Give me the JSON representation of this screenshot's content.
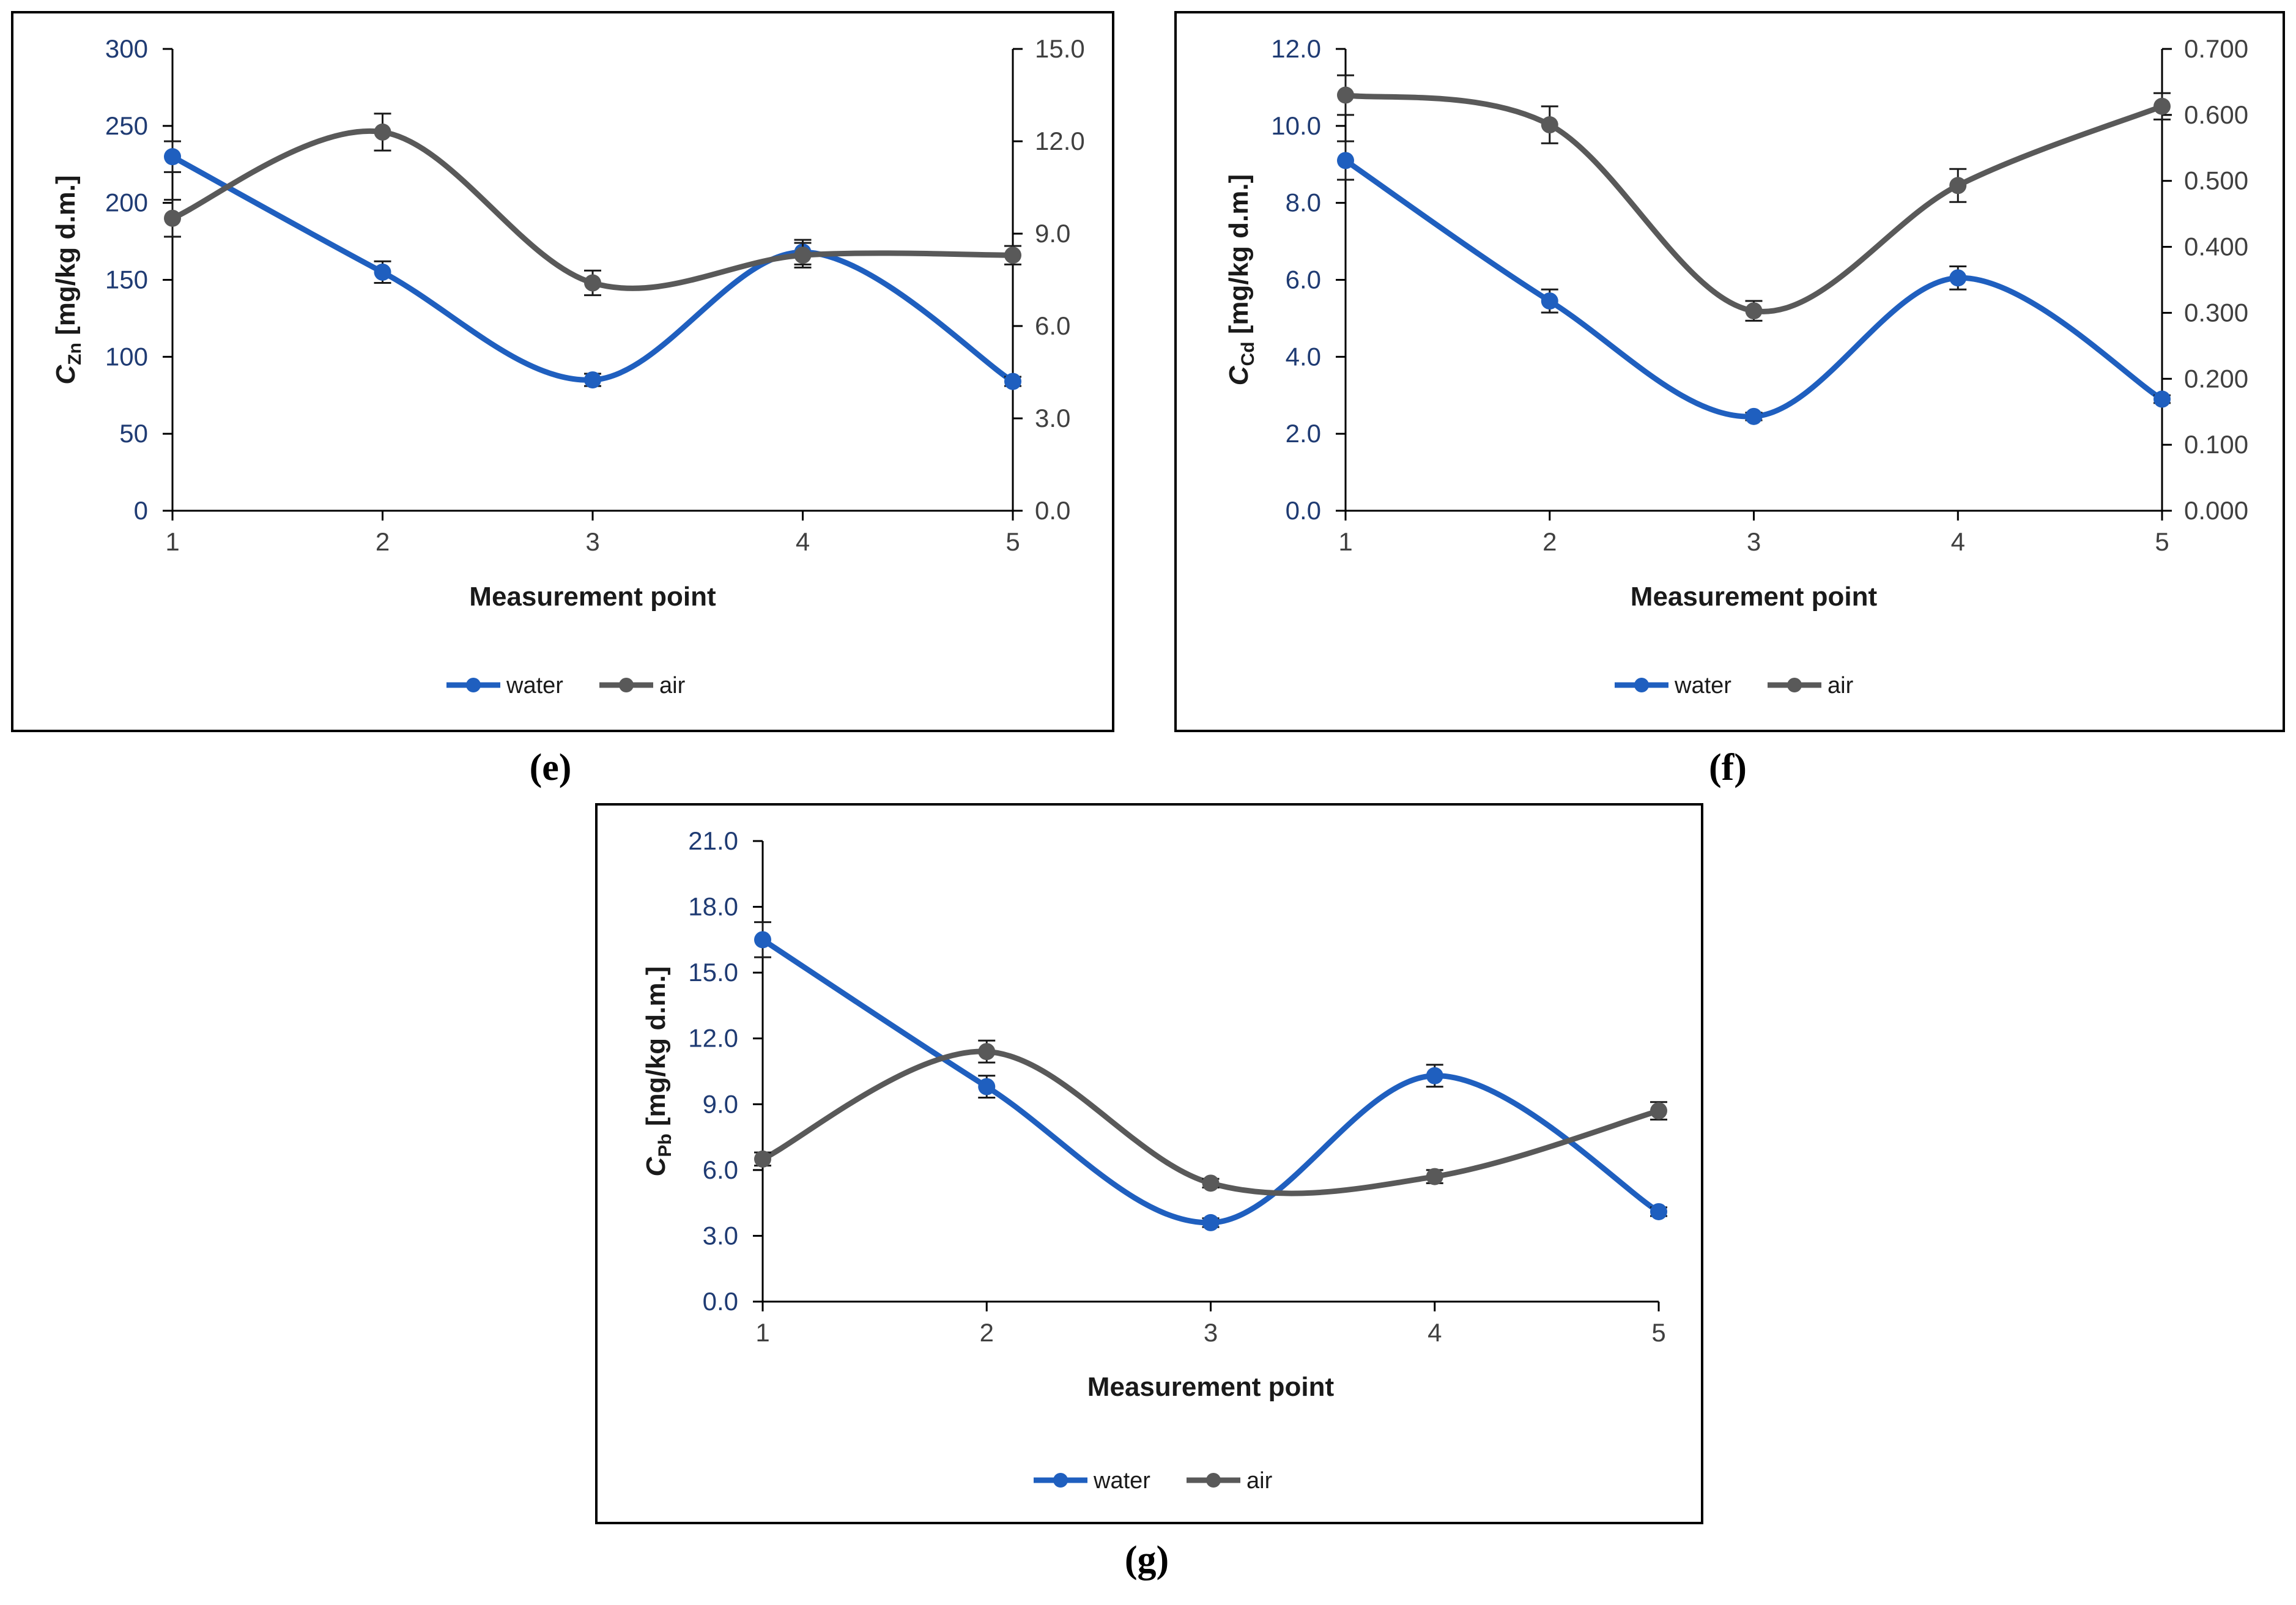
{
  "chart_data": [
    {
      "type": "line",
      "panel_label": "(e)",
      "xlabel": "Measurement point",
      "ylabel_main": "C",
      "ylabel_sub": "Zn",
      "ylabel_rest": " [mg/kg d.m.]",
      "categories": [
        "1",
        "2",
        "3",
        "4",
        "5"
      ],
      "y_left_ticks": [
        "0",
        "50",
        "100",
        "150",
        "200",
        "250",
        "300"
      ],
      "y_right_ticks": [
        "0.0",
        "3.0",
        "6.0",
        "9.0",
        "12.0",
        "15.0"
      ],
      "ylim_left": [
        0,
        300
      ],
      "ylim_right": [
        0,
        15
      ],
      "legend": [
        "water",
        "air"
      ],
      "series": [
        {
          "name": "water",
          "axis": "left",
          "color": "#1f5fbf",
          "values": [
            230,
            155,
            85,
            168,
            84
          ],
          "errors": [
            10,
            7,
            4,
            8,
            3
          ]
        },
        {
          "name": "air",
          "axis": "right",
          "color": "#595959",
          "values": [
            9.5,
            12.3,
            7.4,
            8.3,
            8.3
          ],
          "errors": [
            0.6,
            0.6,
            0.4,
            0.4,
            0.3
          ]
        }
      ]
    },
    {
      "type": "line",
      "panel_label": "(f)",
      "xlabel": "Measurement point",
      "ylabel_main": "C",
      "ylabel_sub": "Cd",
      "ylabel_rest": " [mg/kg d.m.]",
      "categories": [
        "1",
        "2",
        "3",
        "4",
        "5"
      ],
      "y_left_ticks": [
        "0.0",
        "2.0",
        "4.0",
        "6.0",
        "8.0",
        "10.0",
        "12.0"
      ],
      "y_right_ticks": [
        "0.000",
        "0.100",
        "0.200",
        "0.300",
        "0.400",
        "0.500",
        "0.600",
        "0.700"
      ],
      "ylim_left": [
        0,
        12
      ],
      "ylim_right": [
        0,
        0.7
      ],
      "legend": [
        "water",
        "air"
      ],
      "series": [
        {
          "name": "water",
          "axis": "left",
          "color": "#1f5fbf",
          "values": [
            9.1,
            5.45,
            2.45,
            6.05,
            2.9
          ],
          "errors": [
            0.5,
            0.3,
            0.1,
            0.3,
            0.1
          ]
        },
        {
          "name": "air",
          "axis": "right",
          "color": "#595959",
          "values": [
            0.63,
            0.585,
            0.303,
            0.493,
            0.613
          ],
          "errors": [
            0.03,
            0.028,
            0.015,
            0.025,
            0.02
          ]
        }
      ]
    },
    {
      "type": "line",
      "panel_label": "(g)",
      "xlabel": "Measurement point",
      "ylabel_main": "C",
      "ylabel_sub": "Pb",
      "ylabel_rest": " [mg/kg d.m.]",
      "categories": [
        "1",
        "2",
        "3",
        "4",
        "5"
      ],
      "y_left_ticks": [
        "0.0",
        "3.0",
        "6.0",
        "9.0",
        "12.0",
        "15.0",
        "18.0",
        "21.0"
      ],
      "y_right_ticks": [],
      "ylim_left": [
        0,
        21
      ],
      "ylim_right": [
        0,
        21
      ],
      "legend": [
        "water",
        "air"
      ],
      "series": [
        {
          "name": "water",
          "axis": "left",
          "color": "#1f5fbf",
          "values": [
            16.5,
            9.8,
            3.6,
            10.3,
            4.1
          ],
          "errors": [
            0.8,
            0.5,
            0.2,
            0.5,
            0.2
          ]
        },
        {
          "name": "air",
          "axis": "left",
          "color": "#595959",
          "values": [
            6.5,
            11.4,
            5.4,
            5.7,
            8.7
          ],
          "errors": [
            0.3,
            0.5,
            0.2,
            0.3,
            0.4
          ]
        }
      ]
    }
  ]
}
